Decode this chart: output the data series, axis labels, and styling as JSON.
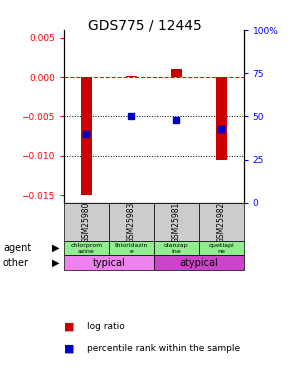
{
  "title": "GDS775 / 12445",
  "samples": [
    "GSM25980",
    "GSM25983",
    "GSM25981",
    "GSM25982"
  ],
  "log_ratio": [
    -0.015,
    0.0002,
    0.001,
    -0.0105
  ],
  "percentile_rank": [
    40,
    50,
    48,
    43
  ],
  "agent_labels": [
    "chlorprom\nazine",
    "thioridazin\ne",
    "olanzap\nine",
    "quetiapi\nne"
  ],
  "typical_color": "#ee82ee",
  "atypical_color": "#cc00cc",
  "ylim_left": [
    -0.016,
    0.006
  ],
  "ylim_right": [
    0,
    100
  ],
  "yticks_left": [
    -0.015,
    -0.01,
    -0.005,
    0.0,
    0.005
  ],
  "yticks_right": [
    0,
    25,
    50,
    75,
    100
  ],
  "bar_color": "#cc0000",
  "dot_color": "#0000cc",
  "background_color": "#ffffff",
  "title_fontsize": 10,
  "tick_fontsize": 6.5
}
